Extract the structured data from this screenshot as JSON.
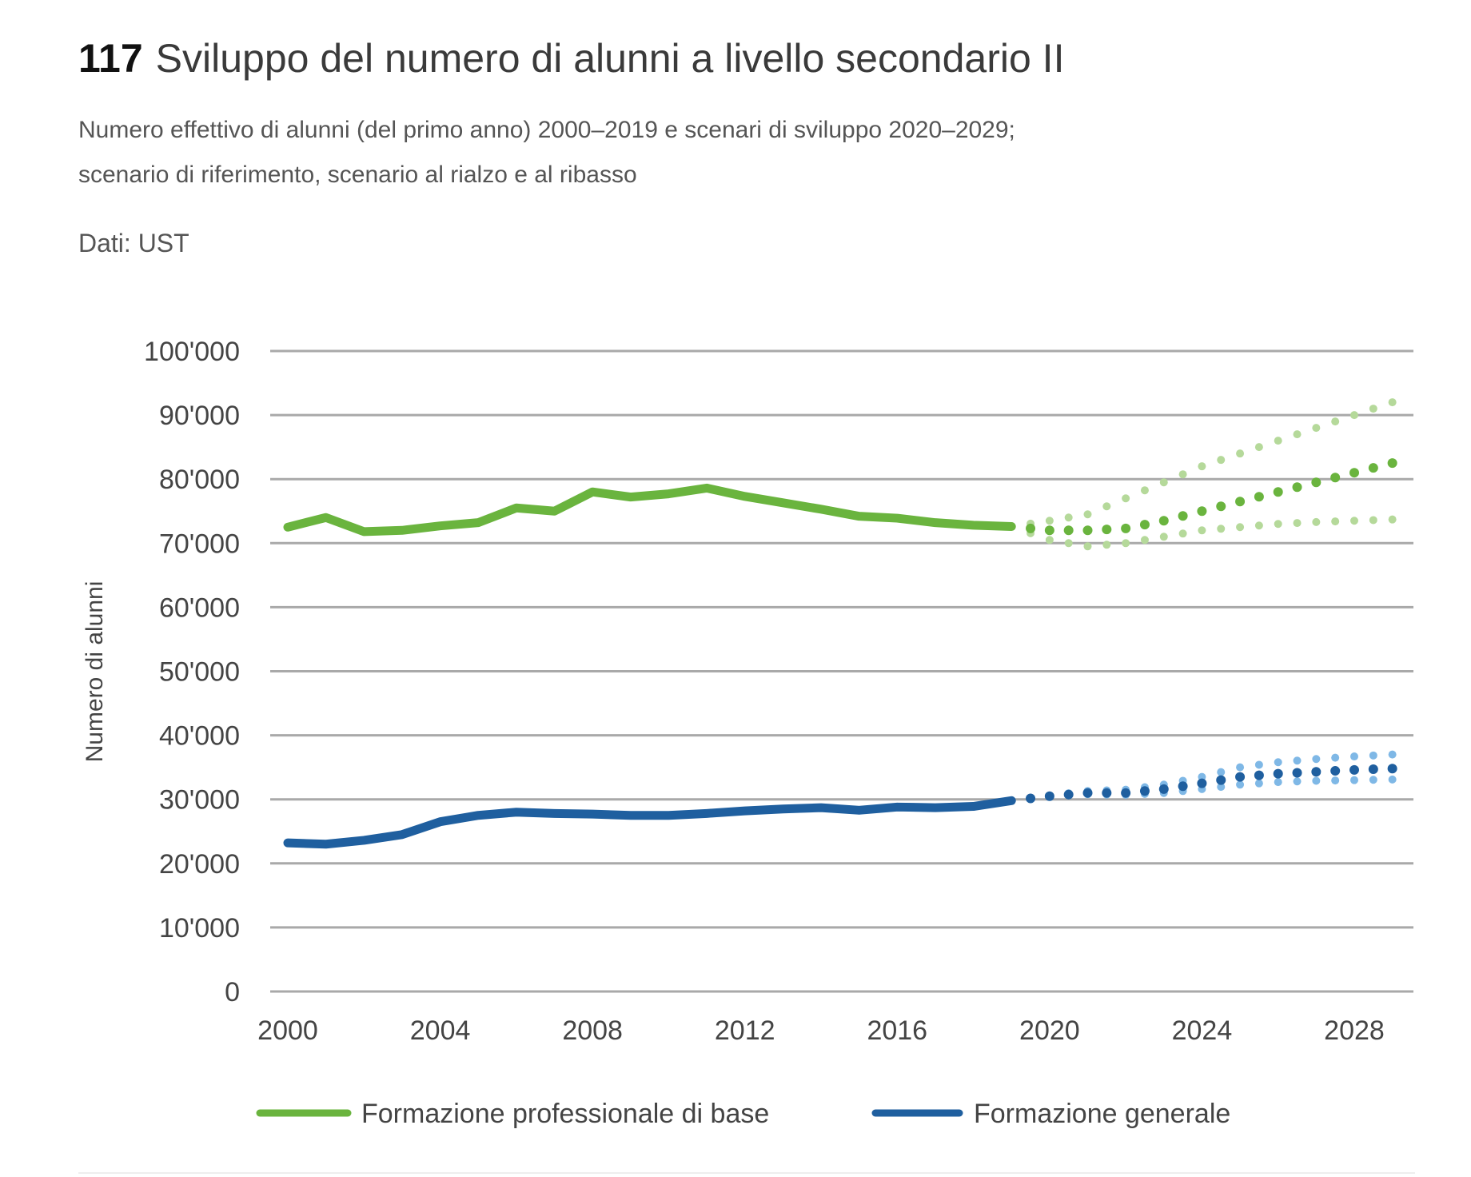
{
  "header": {
    "number": "117",
    "title": "Sviluppo del numero di alunni a livello secondario II",
    "subtitle_line1": "Numero effettivo di alunni (del primo anno) 2000–2019 e scenari di sviluppo 2020–2029;",
    "subtitle_line2": "scenario di riferimento, scenario al rialzo e al ribasso",
    "source": "Dati: UST"
  },
  "chart_data": {
    "type": "line",
    "title": "Sviluppo del numero di alunni a livello secondario II",
    "xlabel": "",
    "ylabel": "Numero di alunni",
    "ylim": [
      0,
      100000
    ],
    "xlim": [
      2000,
      2029
    ],
    "grid": true,
    "legend_placement": "bottom",
    "y_ticks": [
      "0",
      "10'000",
      "20'000",
      "30'000",
      "40'000",
      "50'000",
      "60'000",
      "70'000",
      "80'000",
      "90'000",
      "100'000"
    ],
    "x_ticks": [
      "2000",
      "2004",
      "2008",
      "2012",
      "2016",
      "2020",
      "2024",
      "2028"
    ],
    "x_tick_values": [
      2000,
      2004,
      2008,
      2012,
      2016,
      2020,
      2024,
      2028
    ],
    "actual_years": [
      2000,
      2001,
      2002,
      2003,
      2004,
      2005,
      2006,
      2007,
      2008,
      2009,
      2010,
      2011,
      2012,
      2013,
      2014,
      2015,
      2016,
      2017,
      2018,
      2019
    ],
    "scenario_years": [
      2019,
      2020,
      2021,
      2022,
      2023,
      2024,
      2025,
      2026,
      2027,
      2028,
      2029
    ],
    "series": [
      {
        "name": "Formazione professionale di base",
        "color": "#6ab43e",
        "light_color": "#b5d99a",
        "actual": [
          72500,
          74000,
          71800,
          72000,
          72700,
          73200,
          75500,
          75000,
          78000,
          77200,
          77700,
          78600,
          77300,
          76300,
          75300,
          74200,
          73900,
          73200,
          72800,
          72600
        ],
        "reference": [
          72600,
          72000,
          72000,
          72300,
          73500,
          75000,
          76500,
          78000,
          79500,
          81000,
          82500
        ],
        "upper": [
          72600,
          73500,
          74500,
          77000,
          79500,
          82000,
          84000,
          86000,
          88000,
          90000,
          92000
        ],
        "lower": [
          72600,
          70500,
          69500,
          70000,
          71000,
          72000,
          72500,
          73000,
          73300,
          73500,
          73700
        ]
      },
      {
        "name": "Formazione generale",
        "color": "#1f5f9f",
        "light_color": "#7fb8e6",
        "actual": [
          23200,
          23000,
          23600,
          24500,
          26500,
          27500,
          28000,
          27800,
          27700,
          27500,
          27500,
          27800,
          28200,
          28500,
          28700,
          28300,
          28800,
          28700,
          28900,
          29800
        ],
        "reference": [
          29800,
          30500,
          31000,
          31000,
          31600,
          32500,
          33500,
          34000,
          34300,
          34600,
          34800
        ],
        "upper": [
          29800,
          30600,
          31300,
          31500,
          32300,
          33500,
          35000,
          35800,
          36300,
          36700,
          37000
        ],
        "lower": [
          29800,
          30400,
          30800,
          30700,
          31000,
          31600,
          32300,
          32700,
          32900,
          33000,
          33100
        ]
      }
    ]
  }
}
